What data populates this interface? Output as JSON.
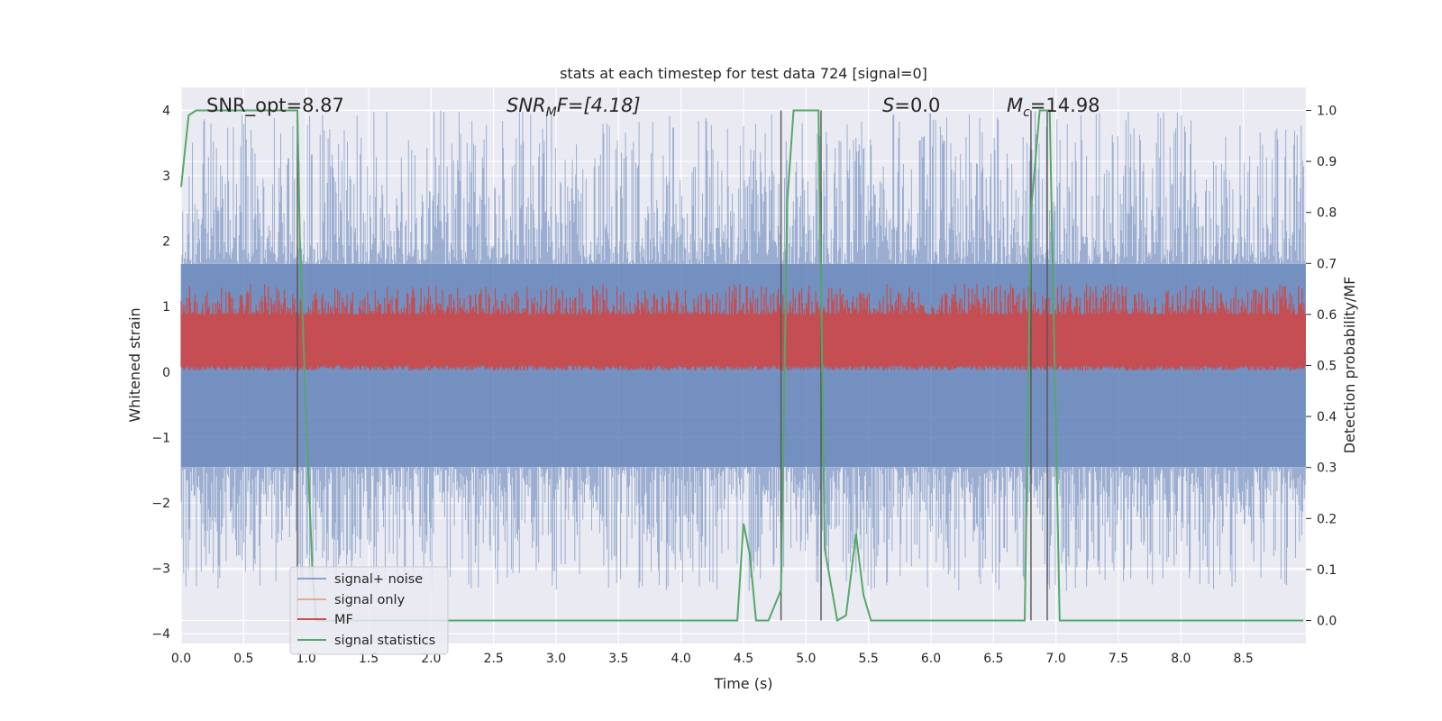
{
  "chart_data": {
    "type": "line",
    "title": "stats at each timestep for test data 724 [signal=0]",
    "xlabel": "Time (s)",
    "ylabel": "Whitened strain",
    "y2label": "Detection probability/MF",
    "xlim": [
      0,
      9.0
    ],
    "ylim": [
      -4.15,
      4.35
    ],
    "y2lim": [
      -0.045,
      1.045
    ],
    "xticks": [
      0.0,
      0.5,
      1.0,
      1.5,
      2.0,
      2.5,
      3.0,
      3.5,
      4.0,
      4.5,
      5.0,
      5.5,
      6.0,
      6.5,
      7.0,
      7.5,
      8.0,
      8.5
    ],
    "xtick_labels": [
      "0.0",
      "0.5",
      "1.0",
      "1.5",
      "2.0",
      "2.5",
      "3.0",
      "3.5",
      "4.0",
      "4.5",
      "5.0",
      "5.5",
      "6.0",
      "6.5",
      "7.0",
      "7.5",
      "8.0",
      "8.5"
    ],
    "yticks": [
      4,
      3,
      2,
      1,
      0,
      -1,
      -2,
      -3,
      -4
    ],
    "ytick_labels": [
      "4",
      "3",
      "2",
      "1",
      "0",
      "−1",
      "−2",
      "−3",
      "−4"
    ],
    "y2ticks": [
      1.0,
      0.9,
      0.8,
      0.7,
      0.6,
      0.5,
      0.4,
      0.3,
      0.2,
      0.1,
      0.0
    ],
    "y2tick_labels": [
      "1.0",
      "0.9",
      "0.8",
      "0.7",
      "0.6",
      "0.5",
      "0.4",
      "0.3",
      "0.2",
      "0.1",
      "0.0"
    ],
    "grid": true,
    "legend_placement": "lower-left",
    "annotations": {
      "snr_opt": "SNR_opt=8.87",
      "snr_mf_prefix": "SNR",
      "snr_mf_sub": "M",
      "snr_mf_suffix": "F=[4.18]",
      "s_var": "S",
      "s_value": "=0.0",
      "mc_var": "M",
      "mc_sub": "c",
      "mc_value": "=14.98"
    },
    "series": [
      {
        "name": "signal+ noise",
        "color": "#4c72b0",
        "opacity": 0.5,
        "band_y": [
          -1.45,
          1.65
        ],
        "range_y": [
          -3.35,
          4.0
        ]
      },
      {
        "name": "signal only",
        "color": "#dd8452",
        "opacity": 0.5
      },
      {
        "name": "MF",
        "color": "#c44e52",
        "axis": "right",
        "band_y2": [
          0.5,
          0.6
        ],
        "range_y2": [
          0.49,
          0.66
        ]
      },
      {
        "name": "signal statistics",
        "color": "#55a868",
        "axis": "right",
        "x": [
          0.0,
          0.06,
          0.12,
          0.2,
          0.5,
          0.93,
          0.95,
          1.0,
          1.05,
          1.08,
          4.45,
          4.5,
          4.55,
          4.6,
          4.7,
          4.8,
          4.85,
          4.9,
          5.1,
          5.15,
          5.25,
          5.32,
          5.4,
          5.46,
          5.52,
          6.75,
          6.8,
          6.87,
          6.95,
          7.03,
          8.98
        ],
        "y": [
          0.85,
          0.99,
          1.0,
          1.0,
          1.0,
          1.0,
          0.75,
          0.4,
          0.1,
          0.0,
          0.0,
          0.19,
          0.13,
          0.0,
          0.0,
          0.06,
          0.82,
          1.0,
          1.0,
          0.14,
          0.0,
          0.01,
          0.17,
          0.05,
          0.0,
          0.0,
          0.8,
          1.0,
          1.0,
          0.0,
          0.0
        ]
      }
    ],
    "vlines_x": [
      0.93,
      4.8,
      5.12,
      6.8,
      6.93
    ]
  }
}
